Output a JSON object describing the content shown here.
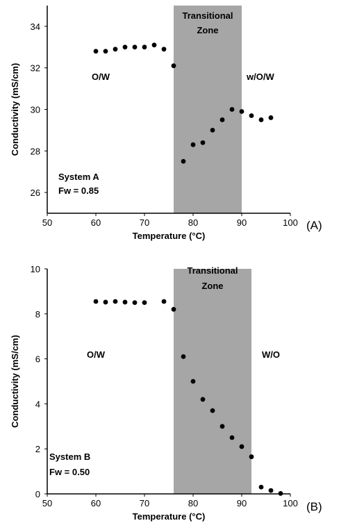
{
  "chart_data": [
    {
      "type": "scatter",
      "panel_label": "(A)",
      "xlabel": "Temperature (°C)",
      "ylabel": "Conductivity (mS/cm)",
      "xlim": [
        50,
        100
      ],
      "ylim": [
        25,
        35
      ],
      "xticks": [
        50,
        60,
        70,
        80,
        90,
        100
      ],
      "yticks": [
        26,
        28,
        30,
        32,
        34
      ],
      "grid": false,
      "shaded_region": {
        "x": [
          76,
          90
        ],
        "color": "#a6a6a6",
        "label": "Transitional Zone"
      },
      "annotations": [
        "O/W",
        "w/O/W",
        "System A",
        "Fw = 0.85"
      ],
      "series": [
        {
          "x": [
            60,
            62,
            64,
            66,
            68,
            70,
            72,
            74,
            76,
            78,
            80,
            82,
            84,
            86,
            88,
            90,
            92,
            94,
            96
          ],
          "y": [
            32.8,
            32.8,
            32.9,
            33.0,
            33.0,
            33.0,
            33.1,
            32.9,
            32.1,
            27.5,
            28.3,
            28.4,
            29.0,
            29.5,
            30.0,
            29.9,
            29.7,
            29.5,
            29.6
          ]
        }
      ]
    },
    {
      "type": "scatter",
      "panel_label": "(B)",
      "xlabel": "Temperature (°C)",
      "ylabel": "Conductivity (mS/cm)",
      "xlim": [
        50,
        100
      ],
      "ylim": [
        0,
        10
      ],
      "xticks": [
        50,
        60,
        70,
        80,
        90,
        100
      ],
      "yticks": [
        0,
        2,
        4,
        6,
        8,
        10
      ],
      "grid": false,
      "shaded_region": {
        "x": [
          76,
          92
        ],
        "color": "#a6a6a6",
        "label": "Transitional Zone"
      },
      "annotations": [
        "O/W",
        "W/O",
        "System B",
        "Fw = 0.50"
      ],
      "series": [
        {
          "x": [
            60,
            62,
            64,
            66,
            68,
            70,
            74,
            76,
            78,
            80,
            82,
            84,
            86,
            88,
            90,
            92,
            94,
            96,
            98
          ],
          "y": [
            8.55,
            8.52,
            8.55,
            8.52,
            8.5,
            8.5,
            8.55,
            8.2,
            6.1,
            5.0,
            4.2,
            3.7,
            3.0,
            2.5,
            2.1,
            1.65,
            0.3,
            0.15,
            0.02
          ]
        }
      ]
    }
  ]
}
